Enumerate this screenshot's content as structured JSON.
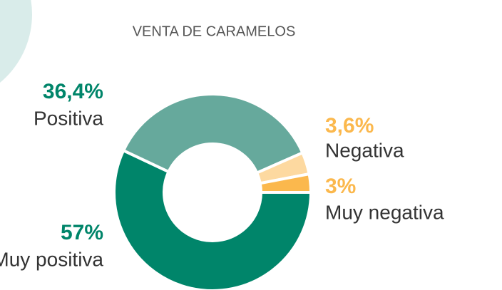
{
  "chart_data": {
    "type": "donut",
    "title": "VENTA DE CARAMELOS",
    "categories": [
      "Muy positiva",
      "Positiva",
      "Negativa",
      "Muy negativa"
    ],
    "values": [
      57,
      36.4,
      3.6,
      3
    ],
    "value_labels": [
      "57%",
      "36,4%",
      "3,6%",
      "3%"
    ],
    "colors": [
      "#00856a",
      "#66a99c",
      "#fdd9a0",
      "#fbb84d"
    ]
  }
}
